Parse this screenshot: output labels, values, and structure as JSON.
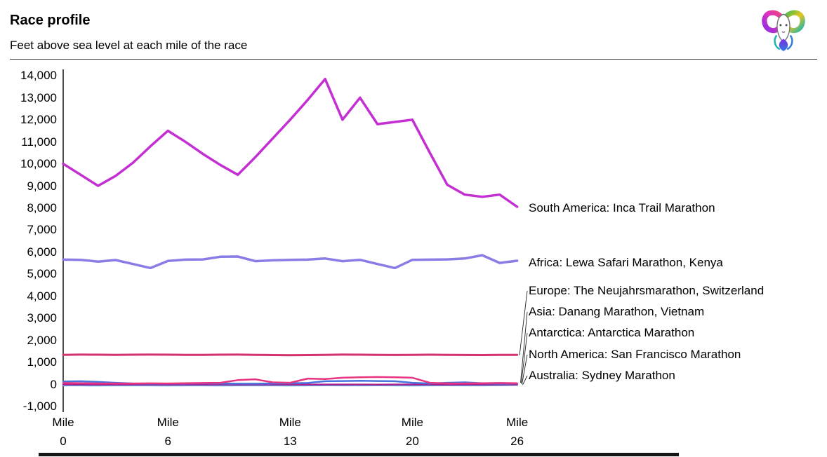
{
  "header": {
    "title": "Race profile",
    "subtitle": "Feet above sea level at each mile of the race",
    "logo_icon": "rainbow-ram-logo"
  },
  "chart_data": {
    "type": "line",
    "title": "Race profile",
    "subtitle": "Feet above sea level at each mile of the race",
    "ylabel": "Feet above sea level",
    "xlabel": "Mile",
    "ylim": [
      -1000,
      14000
    ],
    "grid": false,
    "legend_position": "right-of-line-ends",
    "y_ticks": [
      {
        "label": "14,000",
        "value": 14000
      },
      {
        "label": "13,000",
        "value": 13000
      },
      {
        "label": "12,000",
        "value": 12000
      },
      {
        "label": "11,000",
        "value": 11000
      },
      {
        "label": "10,000",
        "value": 10000
      },
      {
        "label": "9,000",
        "value": 9000
      },
      {
        "label": "8,000",
        "value": 8000
      },
      {
        "label": "7,000",
        "value": 7000
      },
      {
        "label": "6,000",
        "value": 6000
      },
      {
        "label": "5,000",
        "value": 5000
      },
      {
        "label": "4,000",
        "value": 4000
      },
      {
        "label": "3,000",
        "value": 3000
      },
      {
        "label": "2,000",
        "value": 2000
      },
      {
        "label": "1,000",
        "value": 1000
      },
      {
        "label": "0",
        "value": 0
      },
      {
        "label": "-1,000",
        "value": -1000
      }
    ],
    "x_ticks": [
      {
        "word": "Mile",
        "number": "0",
        "mile": 0
      },
      {
        "word": "Mile",
        "number": "6",
        "mile": 6
      },
      {
        "word": "Mile",
        "number": "13",
        "mile": 13
      },
      {
        "word": "Mile",
        "number": "20",
        "mile": 20
      },
      {
        "word": "Mile",
        "number": "26",
        "mile": 26
      }
    ],
    "x": [
      0,
      1,
      2,
      3,
      4,
      5,
      6,
      7,
      8,
      9,
      10,
      11,
      12,
      13,
      14,
      15,
      16,
      17,
      18,
      19,
      20,
      21,
      22,
      23,
      24,
      25,
      26
    ],
    "series": [
      {
        "name": "south-america",
        "label": "South America: Inca Trail Marathon",
        "color": "#c32fd2",
        "values": [
          10000,
          9500,
          9000,
          9450,
          10050,
          10800,
          11500,
          11000,
          10450,
          9950,
          9500,
          10300,
          11150,
          12000,
          12900,
          13850,
          12000,
          13000,
          11800,
          11900,
          12000,
          10500,
          9050,
          8600,
          8500,
          8600,
          8050
        ]
      },
      {
        "name": "africa",
        "label": "Africa: Lewa Safari Marathon, Kenya",
        "color": "#8a7ce6",
        "values": [
          5650,
          5640,
          5560,
          5630,
          5450,
          5270,
          5590,
          5650,
          5660,
          5780,
          5790,
          5580,
          5620,
          5640,
          5650,
          5700,
          5580,
          5640,
          5450,
          5270,
          5640,
          5650,
          5660,
          5700,
          5850,
          5500,
          5600
        ]
      },
      {
        "name": "europe",
        "label": "Europe: The Neujahrsmarathon, Switzerland",
        "color": "#d4326e",
        "values": [
          1330,
          1340,
          1335,
          1330,
          1335,
          1340,
          1335,
          1330,
          1330,
          1335,
          1340,
          1330,
          1320,
          1310,
          1320,
          1330,
          1340,
          1335,
          1330,
          1325,
          1330,
          1335,
          1330,
          1325,
          1320,
          1330,
          1330
        ]
      },
      {
        "name": "asia",
        "label": "Asia: Danang Marathon, Vietnam",
        "color": "#ab1f8f",
        "values": [
          -20,
          -20,
          -25,
          -20,
          -20,
          -20,
          -25,
          -20,
          -20,
          -20,
          -25,
          -20,
          -20,
          -20,
          -25,
          -20,
          -20,
          -20,
          -25,
          -20,
          -20,
          -20,
          -25,
          -20,
          -20,
          -20,
          -20
        ]
      },
      {
        "name": "antarctica",
        "label": "Antarctica: Antarctica Marathon",
        "color": "#4673dd",
        "values": [
          120,
          130,
          100,
          60,
          30,
          20,
          20,
          30,
          40,
          30,
          20,
          20,
          30,
          40,
          50,
          130,
          140,
          150,
          140,
          130,
          60,
          30,
          60,
          80,
          40,
          20,
          30
        ]
      },
      {
        "name": "north-america",
        "label": "North America: San Francisco Marathon",
        "color": "#e73380",
        "values": [
          50,
          40,
          30,
          30,
          30,
          35,
          30,
          40,
          50,
          60,
          180,
          220,
          80,
          60,
          250,
          230,
          290,
          310,
          320,
          310,
          290,
          60,
          30,
          30,
          40,
          50,
          40
        ]
      },
      {
        "name": "australia",
        "label": "Australia: Sydney Marathon",
        "color": "#5fb2e8",
        "values": [
          -60,
          -60,
          -65,
          -60,
          -60,
          -60,
          -65,
          -60,
          -60,
          -65,
          -60,
          -60,
          -60,
          -65,
          -60,
          -55,
          -60,
          -60,
          -55,
          -60,
          -65,
          -60,
          -55,
          -60,
          -60,
          -50,
          -40
        ]
      }
    ]
  }
}
